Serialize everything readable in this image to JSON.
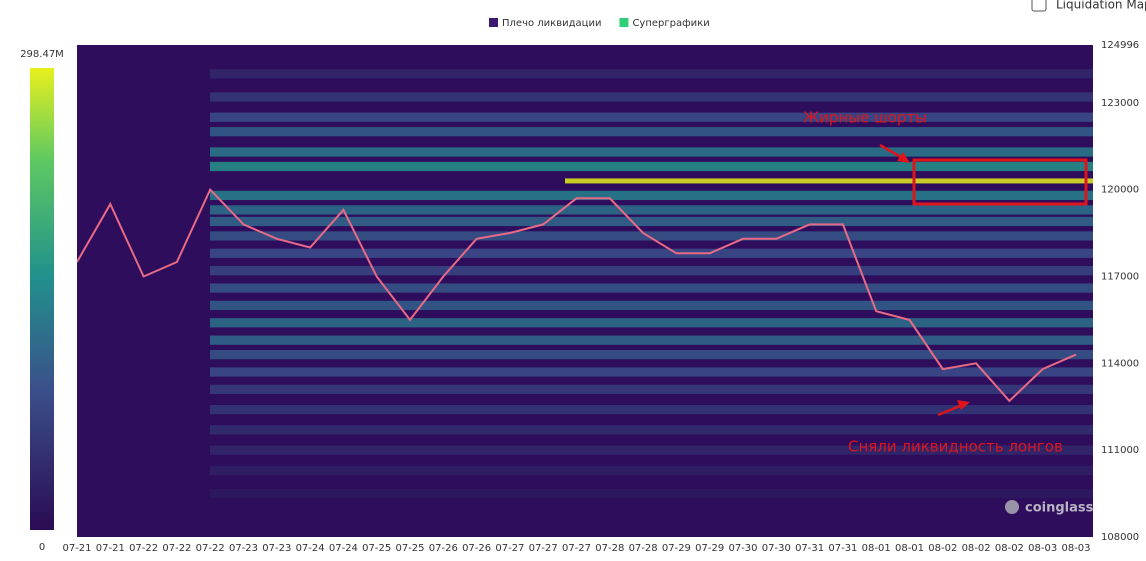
{
  "chart_data": {
    "type": "heatmap",
    "checkbox_label": "Liquidation Map",
    "series": [
      {
        "name": "Плечо ликвидации",
        "color": "#3d1a6e"
      },
      {
        "name": "Суперграфики",
        "color": "#2fcf7a"
      }
    ],
    "colorbar_lim": [
      0,
      298470000
    ],
    "colorbar_ticks": [
      0,
      {
        "value": 298470000,
        "label": "298.47M"
      }
    ],
    "categories": [
      "07-21",
      "07-21",
      "07-22",
      "07-22",
      "07-22",
      "07-23",
      "07-23",
      "07-24",
      "07-24",
      "07-25",
      "07-25",
      "07-26",
      "07-26",
      "07-27",
      "07-27",
      "07-27",
      "07-28",
      "07-28",
      "07-29",
      "07-29",
      "07-30",
      "07-30",
      "07-31",
      "07-31",
      "08-01",
      "08-01",
      "08-02",
      "08-02",
      "08-02",
      "08-03",
      "08-03"
    ],
    "price": [
      117500,
      119500,
      117000,
      117500,
      120000,
      118800,
      118300,
      118000,
      119300,
      117000,
      115500,
      117000,
      118300,
      118500,
      118800,
      119700,
      119700,
      118500,
      117800,
      117800,
      118300,
      118300,
      118800,
      118800,
      115800,
      115500,
      113800,
      114000,
      112700,
      113800,
      114300
    ],
    "ylim": [
      108000,
      124996
    ],
    "yticks": [
      108000,
      111000,
      114000,
      117000,
      120000,
      123000,
      124996
    ],
    "levels": [
      124000,
      123200,
      122500,
      122000,
      121300,
      120800,
      120300,
      119800,
      119300,
      118900,
      118400,
      117800,
      117200,
      116600,
      116000,
      115400,
      114800,
      114300,
      113700,
      113100,
      112400,
      111700,
      111000,
      110300,
      109500
    ],
    "intensity": [
      40000000,
      60000000,
      90000000,
      110000000,
      140000000,
      170000000,
      298470000,
      150000000,
      130000000,
      120000000,
      100000000,
      90000000,
      80000000,
      100000000,
      110000000,
      130000000,
      120000000,
      100000000,
      90000000,
      70000000,
      60000000,
      50000000,
      40000000,
      30000000,
      20000000
    ],
    "annotations": [
      "Жирные шорты",
      "Сняли ликвидность лонгов"
    ],
    "watermark": "coinglass"
  }
}
